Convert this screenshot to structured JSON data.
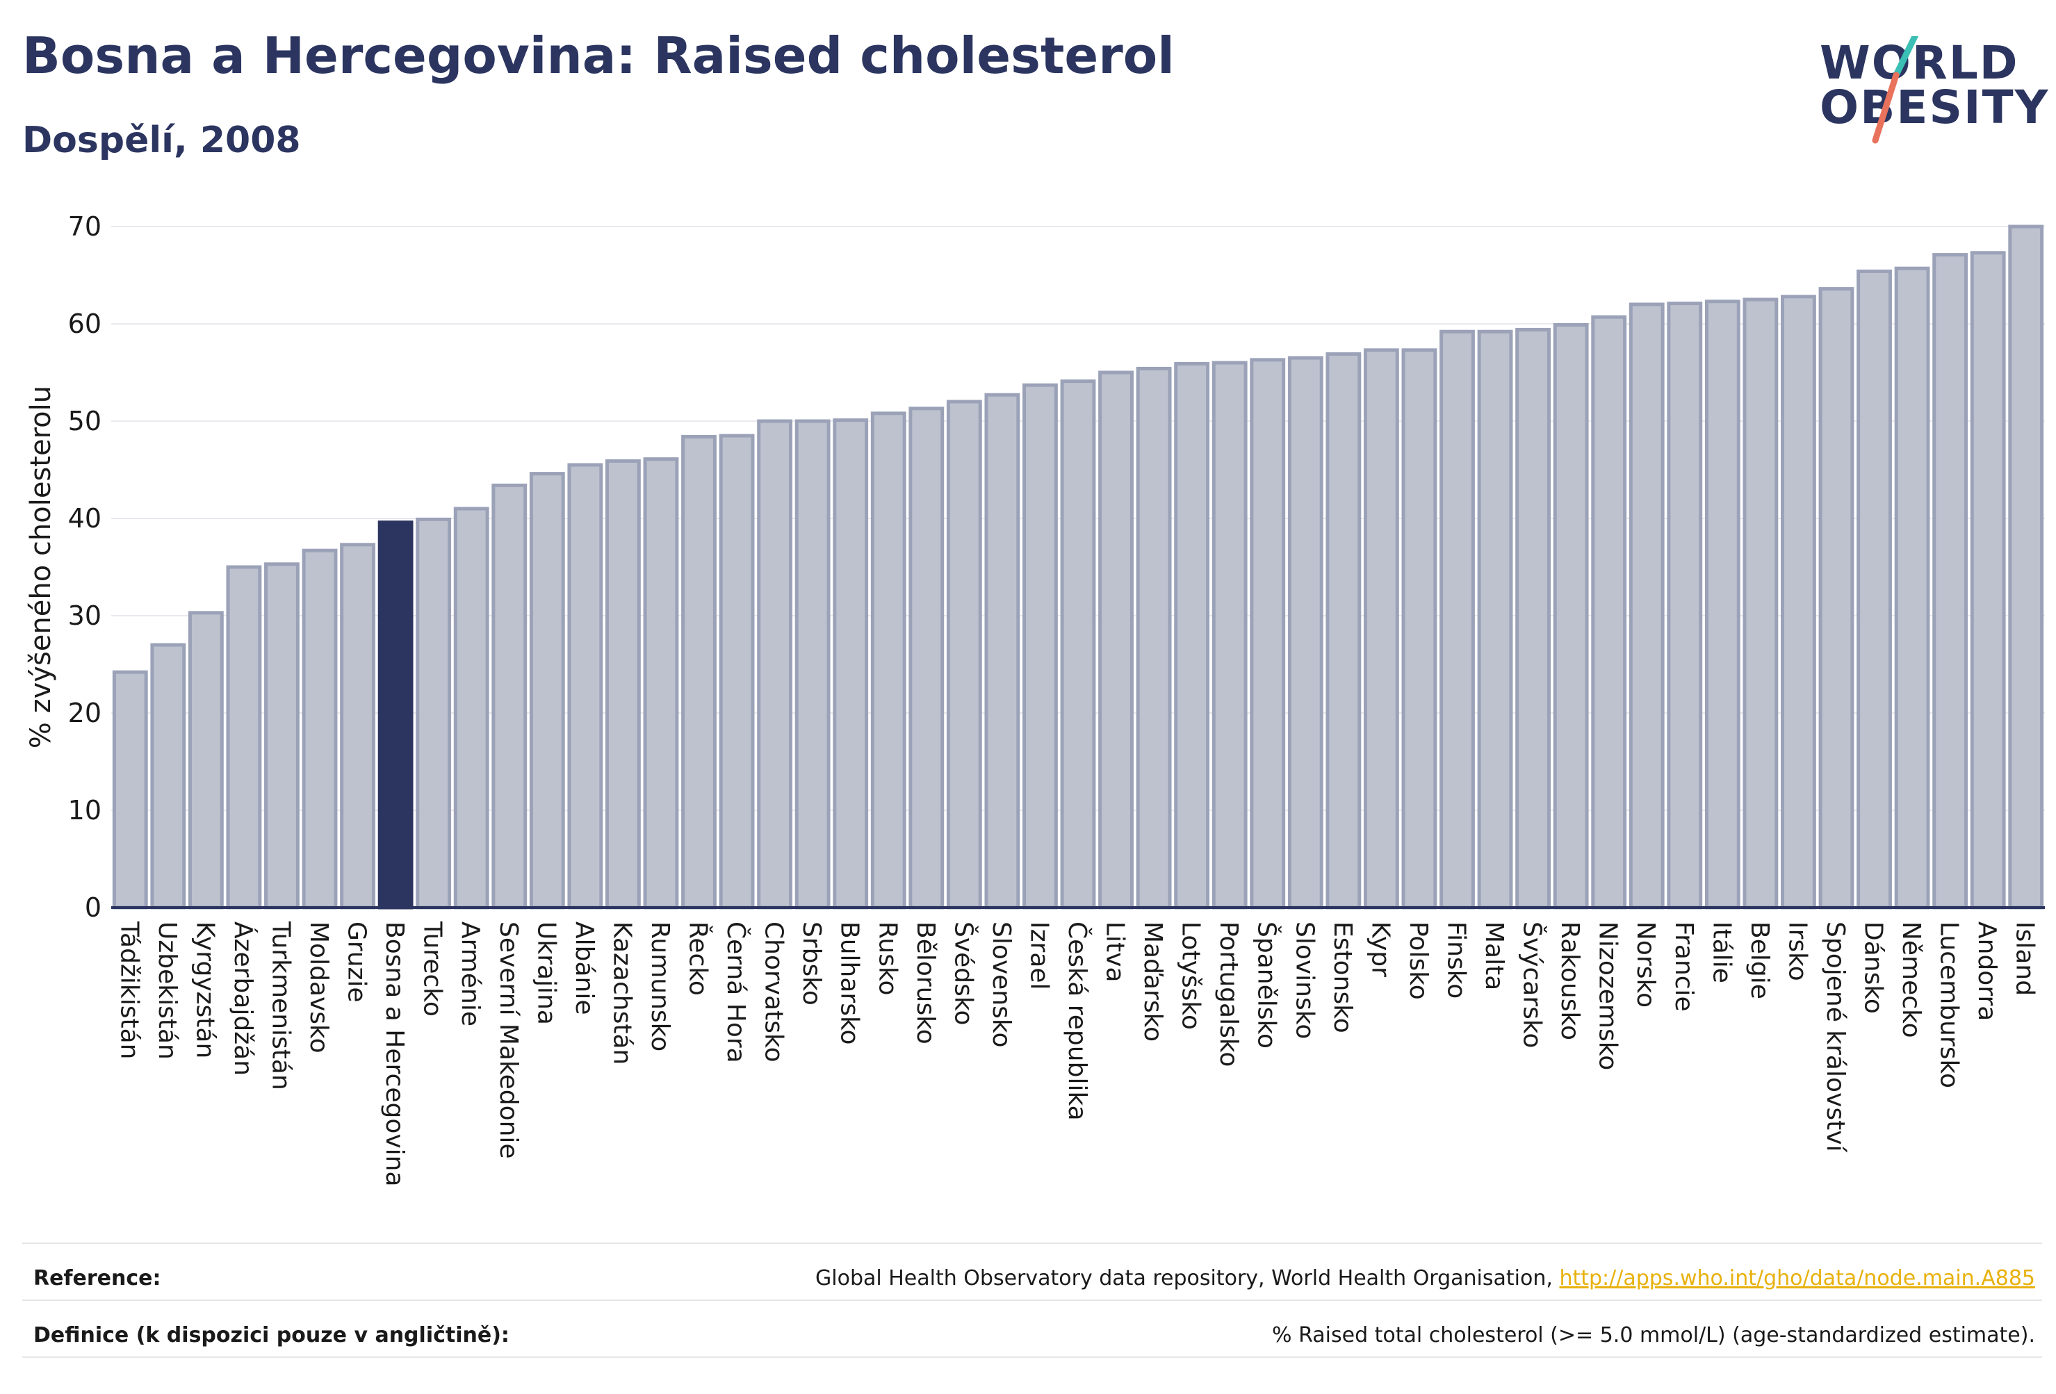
{
  "header": {
    "title": "Bosna a Hercegovina: Raised cholesterol",
    "subtitle": "Dospělí, 2008"
  },
  "logo": {
    "line1": "WORLD",
    "line2": "OBESITY"
  },
  "colors": {
    "primary": "#2b3560",
    "bar_fill": "#bec2cf",
    "bar_stroke": "#9ba2b8",
    "highlight": "#2b3560",
    "accent_teal": "#3cbfb4",
    "accent_red": "#e8725c",
    "link": "#e8b10c"
  },
  "chart_data": {
    "type": "bar",
    "ylabel": "% zvýšeného cholesterolu",
    "ylim": [
      0,
      70
    ],
    "yticks": [
      0,
      10,
      20,
      30,
      40,
      50,
      60,
      70
    ],
    "grid": true,
    "highlight": "Bosna a Hercegovina",
    "categories": [
      "Tádžikistán",
      "Uzbekistán",
      "Kyrgyzstán",
      "Ázerbajdžán",
      "Turkmenistán",
      "Moldavsko",
      "Gruzie",
      "Bosna a Hercegovina",
      "Turecko",
      "Arménie",
      "Severní Makedonie",
      "Ukrajina",
      "Albánie",
      "Kazachstán",
      "Rumunsko",
      "Řecko",
      "Černá Hora",
      "Chorvatsko",
      "Srbsko",
      "Bulharsko",
      "Rusko",
      "Bělorusko",
      "Švédsko",
      "Slovensko",
      "Izrael",
      "Česká republika",
      "Litva",
      "Maďarsko",
      "Lotyšsko",
      "Portugalsko",
      "Španělsko",
      "Slovinsko",
      "Estonsko",
      "Kypr",
      "Polsko",
      "Finsko",
      "Malta",
      "Švýcarsko",
      "Rakousko",
      "Nizozemsko",
      "Norsko",
      "Francie",
      "Itálie",
      "Belgie",
      "Irsko",
      "Spojené království",
      "Dánsko",
      "Německo",
      "Lucembursko",
      "Andorra",
      "Island"
    ],
    "values": [
      24.2,
      27.0,
      30.3,
      35.0,
      35.3,
      36.7,
      37.3,
      39.6,
      39.9,
      41.0,
      43.4,
      44.6,
      45.5,
      45.9,
      46.1,
      48.4,
      48.5,
      50.0,
      50.0,
      50.1,
      50.8,
      51.3,
      52.0,
      52.7,
      53.7,
      54.1,
      55.0,
      55.4,
      55.9,
      56.0,
      56.3,
      56.5,
      56.9,
      57.3,
      57.3,
      59.2,
      59.2,
      59.4,
      59.9,
      60.7,
      62.0,
      62.1,
      62.3,
      62.5,
      62.8,
      63.6,
      65.4,
      65.7,
      67.1,
      67.3,
      70.0
    ]
  },
  "footer": {
    "reference_label": "Reference:",
    "reference_text": "Global Health Observatory data repository, World Health Organisation, ",
    "reference_link": "http://apps.who.int/gho/data/node.main.A885",
    "definition_label": "Definice (k dispozici pouze v angličtině):",
    "definition_text": "% Raised total cholesterol (>= 5.0 mmol/L) (age-standardized estimate)."
  }
}
